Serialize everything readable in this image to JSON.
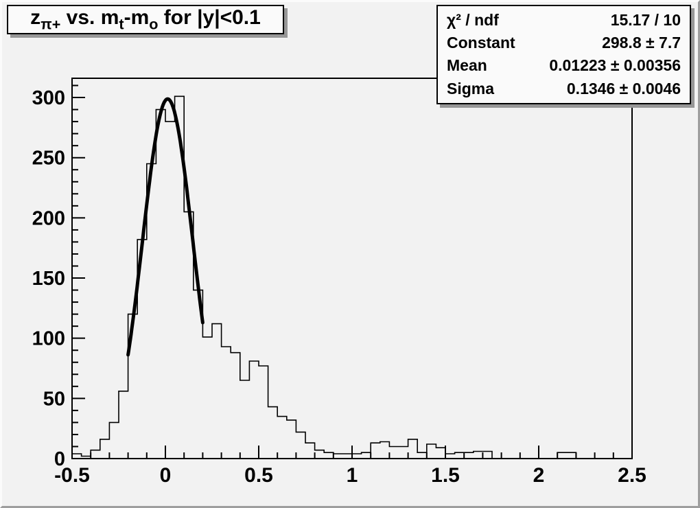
{
  "title": {
    "segments": [
      {
        "t": "z"
      },
      {
        "t": "π+",
        "sub": true
      },
      {
        "t": " vs. m"
      },
      {
        "t": "t",
        "sub": true
      },
      {
        "t": "-m"
      },
      {
        "t": "o",
        "sub": true
      },
      {
        "t": " for |y|<0.1"
      }
    ],
    "plain": "z_{π+} vs. m_t-m_o for |y|<0.1"
  },
  "stats": {
    "rows": [
      {
        "label": "χ² / ndf",
        "value": "15.17 / 10"
      },
      {
        "label": "Constant",
        "value": "298.8 ± 7.7"
      },
      {
        "label": "Mean",
        "value": "0.01223 ± 0.00356"
      },
      {
        "label": "Sigma",
        "value": "0.1346 ± 0.0046"
      }
    ]
  },
  "colors": {
    "canvas_bg": "#f2f2f2",
    "frame_line": "#000000",
    "histogram_line": "#000000",
    "fit_line": "#000000",
    "pave_bg": "#fafafa",
    "pave_shadow": "#979797"
  },
  "chart_data": {
    "type": "bar",
    "subtype": "histogram-with-gaussian-fit",
    "title": "z_{π+} vs. m_t-m_o for |y|<0.1",
    "xlabel": "",
    "ylabel": "",
    "xlim": [
      -0.5,
      2.5
    ],
    "ylim": [
      0,
      316
    ],
    "grid": false,
    "legend_position": "none",
    "bin_start": -0.5,
    "bin_width": 0.05,
    "counts": [
      4,
      2,
      7,
      16,
      30,
      56,
      120,
      182,
      245,
      290,
      280,
      301,
      205,
      140,
      101,
      112,
      93,
      88,
      65,
      81,
      77,
      43,
      35,
      32,
      22,
      13,
      7,
      5,
      4,
      4,
      4,
      5,
      13,
      14,
      10,
      10,
      16,
      5,
      12,
      9,
      4,
      5,
      5,
      6,
      6,
      0,
      0,
      0,
      0,
      0,
      0,
      0,
      5,
      5,
      0,
      0,
      0,
      0,
      0,
      0
    ],
    "x_major_ticks": [
      -0.5,
      0,
      0.5,
      1,
      1.5,
      2,
      2.5
    ],
    "x_tick_labels": [
      "-0.5",
      "0",
      "0.5",
      "1",
      "1.5",
      "2",
      "2.5"
    ],
    "x_minor_step": 0.1,
    "y_major_ticks": [
      0,
      50,
      100,
      150,
      200,
      250,
      300
    ],
    "y_tick_labels": [
      "0",
      "50",
      "100",
      "150",
      "200",
      "250",
      "300"
    ],
    "y_minor_step": 10,
    "fit": {
      "type": "gaussian",
      "constant": 298.8,
      "mean": 0.01223,
      "sigma": 0.1346,
      "range": [
        -0.2,
        0.2
      ]
    }
  }
}
